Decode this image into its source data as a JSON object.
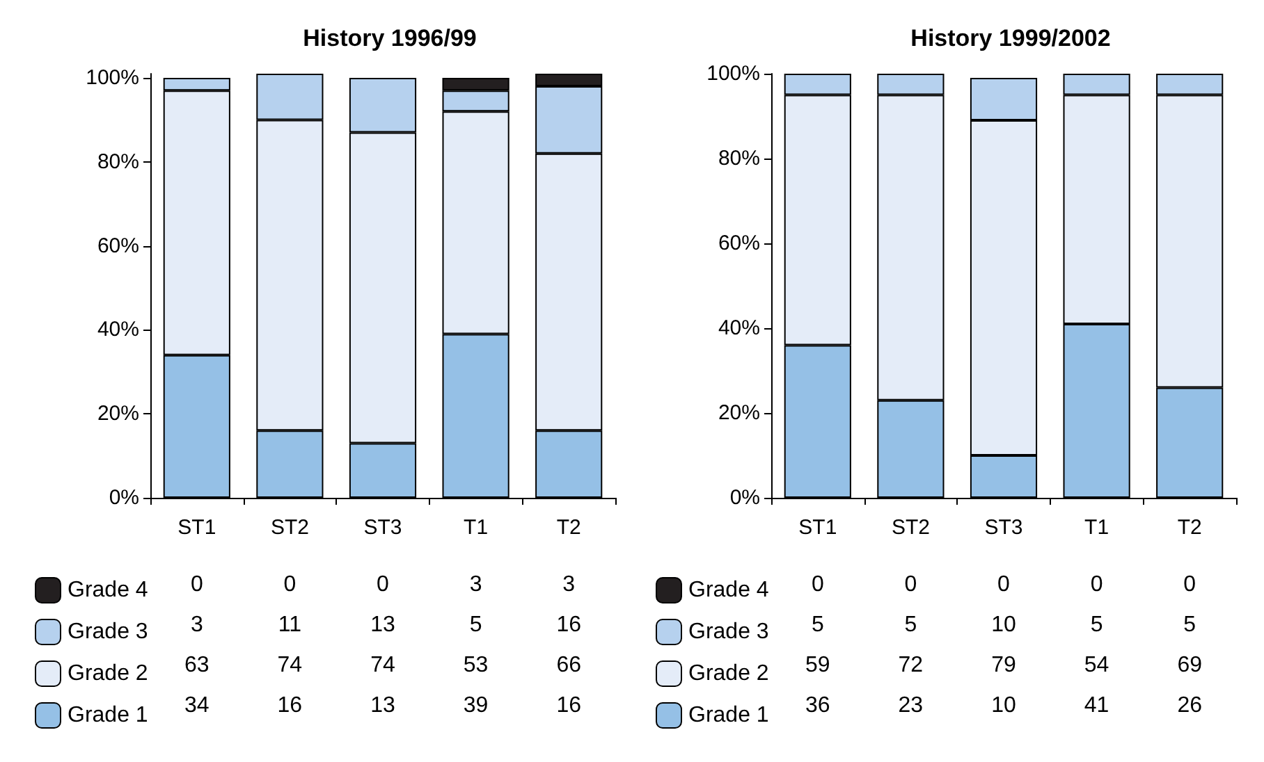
{
  "chart_data": [
    {
      "type": "bar",
      "title": "History 1996/99",
      "categories": [
        "ST1",
        "ST2",
        "ST3",
        "T1",
        "T2"
      ],
      "stacked": true,
      "ylim": [
        0,
        101
      ],
      "yticks": [
        {
          "value": 0,
          "label": "0%"
        },
        {
          "value": 20,
          "label": "20%"
        },
        {
          "value": 40,
          "label": "40%"
        },
        {
          "value": 60,
          "label": "60%"
        },
        {
          "value": 80,
          "label": "80%"
        },
        {
          "value": 100,
          "label": "100%"
        }
      ],
      "data_labels": true,
      "legend": "bottom",
      "series": [
        {
          "name": "Grade 1",
          "color": "#95c0e6",
          "values": [
            34,
            16,
            13,
            39,
            16
          ]
        },
        {
          "name": "Grade 2",
          "color": "#e4ecf8",
          "values": [
            63,
            74,
            74,
            53,
            66
          ]
        },
        {
          "name": "Grade 3",
          "color": "#b6d1ee",
          "values": [
            3,
            11,
            13,
            5,
            16
          ]
        },
        {
          "name": "Grade 4",
          "color": "#231f20",
          "values": [
            0,
            0,
            0,
            3,
            3
          ]
        }
      ]
    },
    {
      "type": "bar",
      "title": "History 1999/2002",
      "categories": [
        "ST1",
        "ST2",
        "ST3",
        "T1",
        "T2"
      ],
      "stacked": true,
      "ylim": [
        0,
        100
      ],
      "yticks": [
        {
          "value": 0,
          "label": "0%"
        },
        {
          "value": 20,
          "label": "20%"
        },
        {
          "value": 40,
          "label": "40%"
        },
        {
          "value": 60,
          "label": "60%"
        },
        {
          "value": 80,
          "label": "80%"
        },
        {
          "value": 100,
          "label": "100%"
        }
      ],
      "data_labels": true,
      "legend": "bottom",
      "series": [
        {
          "name": "Grade 1",
          "color": "#95c0e6",
          "values": [
            36,
            23,
            10,
            41,
            26
          ]
        },
        {
          "name": "Grade 2",
          "color": "#e4ecf8",
          "values": [
            59,
            72,
            79,
            54,
            69
          ]
        },
        {
          "name": "Grade 3",
          "color": "#b6d1ee",
          "values": [
            5,
            5,
            10,
            5,
            5
          ]
        },
        {
          "name": "Grade 4",
          "color": "#231f20",
          "values": [
            0,
            0,
            0,
            0,
            0
          ]
        }
      ]
    }
  ]
}
